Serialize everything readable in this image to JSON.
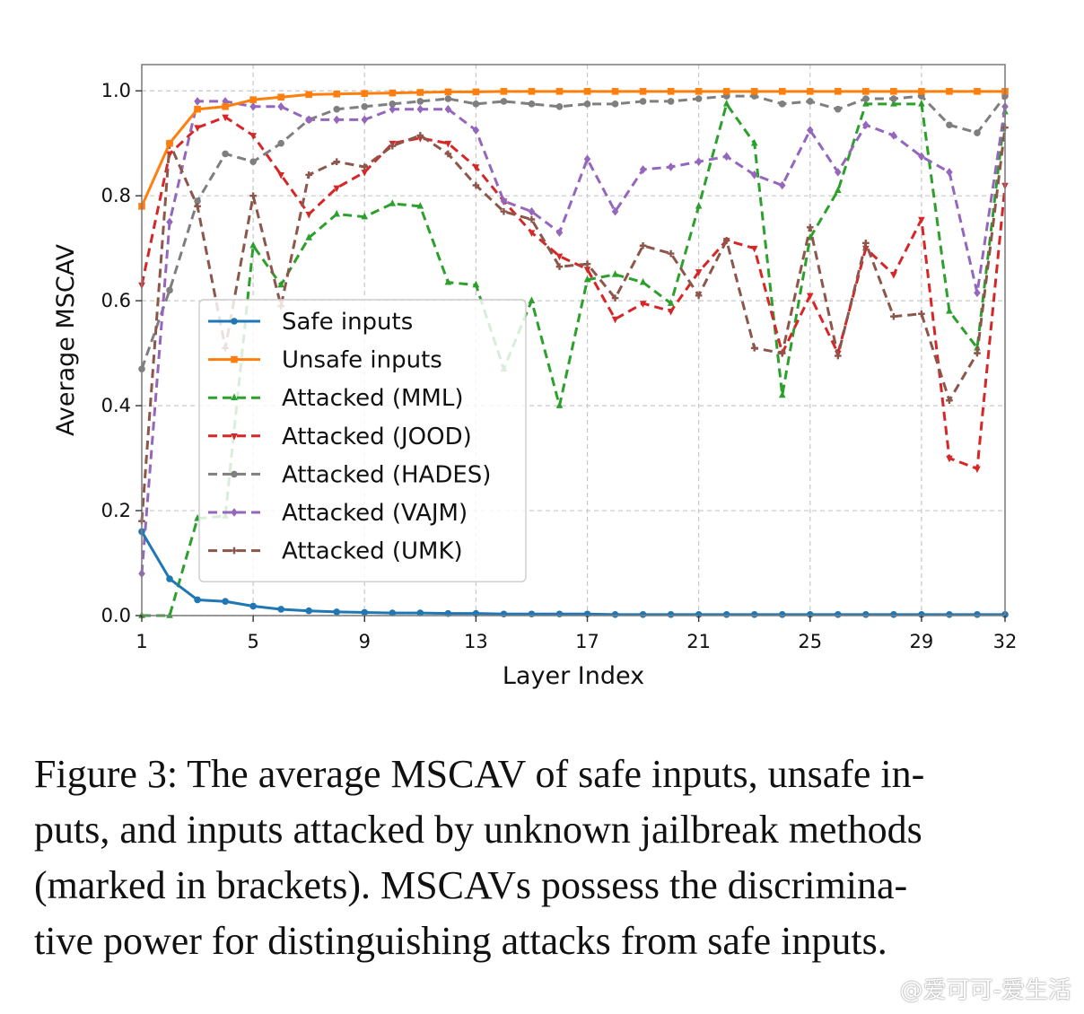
{
  "chart_data": {
    "type": "line",
    "xlabel": "Layer Index",
    "ylabel": "Average MSCAV",
    "xlim": [
      1,
      32
    ],
    "ylim": [
      0.0,
      1.05
    ],
    "xticks": [
      1,
      5,
      9,
      13,
      17,
      21,
      25,
      29,
      32
    ],
    "yticks": [
      0.0,
      0.2,
      0.4,
      0.6,
      0.8,
      1.0
    ],
    "ytick_labels": [
      "0.0",
      "0.2",
      "0.4",
      "0.6",
      "0.8",
      "1.0"
    ],
    "grid": true,
    "legend_position": "center-left",
    "x": [
      1,
      2,
      3,
      4,
      5,
      6,
      7,
      8,
      9,
      10,
      11,
      12,
      13,
      14,
      15,
      16,
      17,
      18,
      19,
      20,
      21,
      22,
      23,
      24,
      25,
      26,
      27,
      28,
      29,
      30,
      31,
      32
    ],
    "series": [
      {
        "name": "Safe inputs",
        "color": "#1f77b4",
        "style": "solid",
        "marker": "circle",
        "values": [
          0.16,
          0.07,
          0.03,
          0.027,
          0.018,
          0.012,
          0.009,
          0.007,
          0.006,
          0.005,
          0.005,
          0.004,
          0.004,
          0.003,
          0.003,
          0.003,
          0.003,
          0.002,
          0.002,
          0.002,
          0.002,
          0.002,
          0.002,
          0.002,
          0.002,
          0.002,
          0.002,
          0.002,
          0.002,
          0.002,
          0.002,
          0.002
        ]
      },
      {
        "name": "Unsafe inputs",
        "color": "#ff7f0e",
        "style": "solid",
        "marker": "square",
        "values": [
          0.78,
          0.9,
          0.965,
          0.97,
          0.983,
          0.988,
          0.993,
          0.994,
          0.995,
          0.996,
          0.997,
          0.998,
          0.998,
          0.999,
          0.999,
          0.999,
          0.999,
          0.999,
          0.999,
          0.999,
          0.999,
          0.999,
          0.999,
          0.999,
          0.999,
          0.999,
          0.999,
          0.999,
          0.999,
          0.999,
          0.999,
          0.999
        ]
      },
      {
        "name": "Attacked (MML)",
        "color": "#2ca02c",
        "style": "dashed",
        "marker": "triangle-up",
        "values": [
          0.0,
          0.0,
          0.185,
          0.19,
          0.705,
          0.63,
          0.72,
          0.765,
          0.76,
          0.785,
          0.78,
          0.635,
          0.63,
          0.47,
          0.6,
          0.4,
          0.64,
          0.65,
          0.635,
          0.595,
          0.78,
          0.975,
          0.9,
          0.42,
          0.72,
          0.81,
          0.975,
          0.975,
          0.975,
          0.58,
          0.51,
          0.96
        ]
      },
      {
        "name": "Attacked (JOOD)",
        "color": "#d62728",
        "style": "dashed",
        "marker": "triangle-down",
        "values": [
          0.63,
          0.88,
          0.93,
          0.95,
          0.915,
          0.84,
          0.765,
          0.815,
          0.845,
          0.9,
          0.91,
          0.9,
          0.855,
          0.79,
          0.73,
          0.685,
          0.66,
          0.565,
          0.595,
          0.58,
          0.655,
          0.715,
          0.7,
          0.5,
          0.61,
          0.5,
          0.7,
          0.65,
          0.755,
          0.3,
          0.28,
          0.82
        ]
      },
      {
        "name": "Attacked (HADES)",
        "color": "#7f7f7f",
        "style": "dashed",
        "marker": "circle",
        "values": [
          0.47,
          0.62,
          0.79,
          0.88,
          0.865,
          0.9,
          0.945,
          0.965,
          0.97,
          0.975,
          0.98,
          0.985,
          0.975,
          0.98,
          0.975,
          0.97,
          0.975,
          0.975,
          0.98,
          0.98,
          0.985,
          0.99,
          0.99,
          0.975,
          0.98,
          0.965,
          0.985,
          0.985,
          0.99,
          0.935,
          0.92,
          0.99
        ]
      },
      {
        "name": "Attacked (VAJM)",
        "color": "#9467bd",
        "style": "dashed",
        "marker": "diamond",
        "values": [
          0.08,
          0.75,
          0.98,
          0.98,
          0.97,
          0.97,
          0.945,
          0.945,
          0.945,
          0.965,
          0.965,
          0.965,
          0.925,
          0.79,
          0.77,
          0.73,
          0.87,
          0.77,
          0.85,
          0.855,
          0.865,
          0.875,
          0.84,
          0.82,
          0.925,
          0.845,
          0.935,
          0.915,
          0.875,
          0.845,
          0.615,
          0.97
        ]
      },
      {
        "name": "Attacked (UMK)",
        "color": "#8c564b",
        "style": "dashed",
        "marker": "plus",
        "values": [
          0.18,
          0.9,
          0.78,
          0.51,
          0.8,
          0.59,
          0.84,
          0.865,
          0.855,
          0.895,
          0.915,
          0.88,
          0.82,
          0.77,
          0.755,
          0.665,
          0.67,
          0.605,
          0.705,
          0.69,
          0.61,
          0.715,
          0.51,
          0.5,
          0.74,
          0.495,
          0.71,
          0.57,
          0.575,
          0.41,
          0.5,
          0.93
        ]
      }
    ]
  },
  "caption": {
    "text": "Figure 3: The average MSCAV of safe inputs, unsafe in-puts, and inputs attacked by unknown jailbreak methods (marked in brackets). MSCAVs possess the discrimina-tive power for distinguishing attacks from safe inputs.",
    "lines": [
      "Figure 3: The average MSCAV of safe inputs, unsafe in-",
      "puts, and inputs attacked by unknown jailbreak methods",
      "(marked in brackets). MSCAVs possess the discrimina-",
      "tive power for distinguishing attacks from safe inputs."
    ]
  },
  "watermark": "@爱可可-爱生活"
}
